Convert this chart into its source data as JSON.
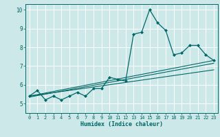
{
  "xlabel": "Humidex (Indice chaleur)",
  "ylabel": "",
  "xlim": [
    -0.5,
    23.5
  ],
  "ylim": [
    4.5,
    10.3
  ],
  "background_color": "#cce8e8",
  "grid_color": "#ffffff",
  "line_color": "#006666",
  "x_ticks": [
    0,
    1,
    2,
    3,
    4,
    5,
    6,
    7,
    8,
    9,
    10,
    11,
    12,
    13,
    14,
    15,
    16,
    17,
    18,
    19,
    20,
    21,
    22,
    23
  ],
  "y_ticks": [
    5,
    6,
    7,
    8,
    9,
    10
  ],
  "series": {
    "main": {
      "x": [
        0,
        1,
        2,
        3,
        4,
        5,
        6,
        7,
        8,
        9,
        10,
        11,
        12,
        13,
        14,
        15,
        16,
        17,
        18,
        19,
        20,
        21,
        22,
        23
      ],
      "y": [
        5.4,
        5.7,
        5.2,
        5.4,
        5.2,
        5.4,
        5.6,
        5.4,
        5.8,
        5.8,
        6.4,
        6.3,
        6.2,
        8.7,
        8.8,
        10.0,
        9.3,
        8.9,
        7.6,
        7.7,
        8.1,
        8.1,
        7.6,
        7.3
      ]
    },
    "line1": {
      "x": [
        0,
        23
      ],
      "y": [
        5.4,
        7.3
      ]
    },
    "line2": {
      "x": [
        0,
        23
      ],
      "y": [
        5.4,
        6.8
      ]
    },
    "line3": {
      "x": [
        0,
        23
      ],
      "y": [
        5.35,
        7.15
      ]
    }
  }
}
